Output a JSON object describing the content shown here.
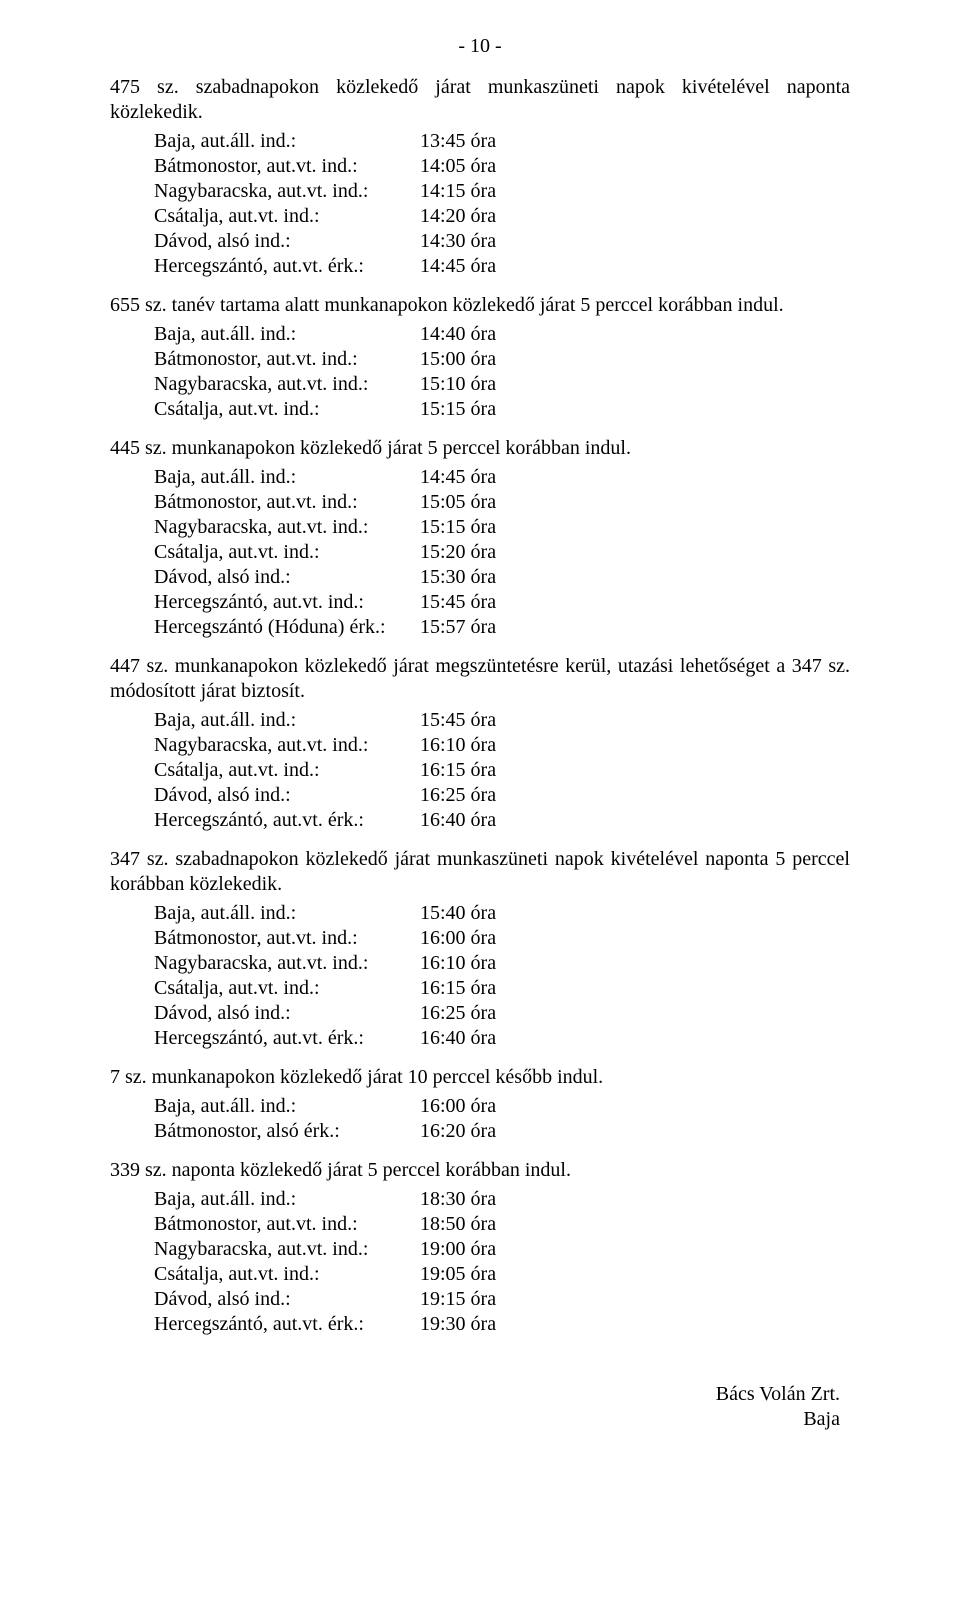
{
  "page_number": "- 10 -",
  "blocks": [
    {
      "intro": "475 sz. szabadnapokon közlekedő járat munkaszüneti napok kivételével naponta közlekedik.",
      "rows": [
        {
          "label": "Baja, aut.áll. ind.:",
          "value": "13:45 óra"
        },
        {
          "label": "Bátmonostor, aut.vt. ind.:",
          "value": "14:05 óra"
        },
        {
          "label": "Nagybaracska, aut.vt. ind.:",
          "value": "14:15 óra"
        },
        {
          "label": "Csátalja, aut.vt. ind.:",
          "value": "14:20 óra"
        },
        {
          "label": "Dávod, alsó ind.:",
          "value": "14:30 óra"
        },
        {
          "label": "Hercegszántó, aut.vt. érk.:",
          "value": "14:45 óra"
        }
      ]
    },
    {
      "intro": "655 sz. tanév tartama alatt munkanapokon közlekedő járat 5 perccel korábban indul.",
      "rows": [
        {
          "label": "Baja, aut.áll. ind.:",
          "value": "14:40 óra"
        },
        {
          "label": "Bátmonostor, aut.vt. ind.:",
          "value": "15:00 óra"
        },
        {
          "label": "Nagybaracska, aut.vt. ind.:",
          "value": "15:10 óra"
        },
        {
          "label": "Csátalja, aut.vt. ind.:",
          "value": "15:15 óra"
        }
      ]
    },
    {
      "intro": "445 sz. munkanapokon közlekedő járat 5 perccel korábban indul.",
      "rows": [
        {
          "label": "Baja, aut.áll. ind.:",
          "value": "14:45 óra"
        },
        {
          "label": "Bátmonostor, aut.vt. ind.:",
          "value": "15:05 óra"
        },
        {
          "label": "Nagybaracska, aut.vt. ind.:",
          "value": "15:15 óra"
        },
        {
          "label": "Csátalja, aut.vt. ind.:",
          "value": "15:20 óra"
        },
        {
          "label": "Dávod, alsó ind.:",
          "value": "15:30 óra"
        },
        {
          "label": "Hercegszántó, aut.vt. ind.:",
          "value": "15:45 óra"
        },
        {
          "label": "Hercegszántó (Hóduna) érk.:",
          "value": "15:57 óra"
        }
      ]
    },
    {
      "intro": "447 sz. munkanapokon közlekedő járat megszüntetésre kerül, utazási lehetőséget a 347 sz. módosított járat biztosít.",
      "rows": [
        {
          "label": "Baja, aut.áll. ind.:",
          "value": "15:45 óra"
        },
        {
          "label": "Nagybaracska, aut.vt. ind.:",
          "value": "16:10 óra"
        },
        {
          "label": "Csátalja, aut.vt. ind.:",
          "value": "16:15 óra"
        },
        {
          "label": "Dávod, alsó ind.:",
          "value": "16:25 óra"
        },
        {
          "label": "Hercegszántó, aut.vt. érk.:",
          "value": "16:40 óra"
        }
      ]
    },
    {
      "intro": "347 sz. szabadnapokon közlekedő járat munkaszüneti napok kivételével naponta 5 perccel korábban közlekedik.",
      "rows": [
        {
          "label": "Baja, aut.áll. ind.:",
          "value": "15:40 óra"
        },
        {
          "label": "Bátmonostor, aut.vt. ind.:",
          "value": "16:00 óra"
        },
        {
          "label": "Nagybaracska, aut.vt. ind.:",
          "value": "16:10 óra"
        },
        {
          "label": "Csátalja, aut.vt. ind.:",
          "value": "16:15 óra"
        },
        {
          "label": "Dávod, alsó ind.:",
          "value": "16:25 óra"
        },
        {
          "label": "Hercegszántó, aut.vt. érk.:",
          "value": "16:40 óra"
        }
      ]
    },
    {
      "intro": "7 sz. munkanapokon közlekedő járat 10 perccel később indul.",
      "rows": [
        {
          "label": "Baja, aut.áll. ind.:",
          "value": "16:00 óra"
        },
        {
          "label": "Bátmonostor, alsó érk.:",
          "value": "16:20 óra"
        }
      ]
    },
    {
      "intro": "339 sz. naponta közlekedő járat 5 perccel korábban indul.",
      "rows": [
        {
          "label": "Baja, aut.áll. ind.:",
          "value": "18:30 óra"
        },
        {
          "label": "Bátmonostor, aut.vt. ind.:",
          "value": "18:50 óra"
        },
        {
          "label": "Nagybaracska, aut.vt. ind.:",
          "value": "19:00 óra"
        },
        {
          "label": "Csátalja, aut.vt. ind.:",
          "value": "19:05 óra"
        },
        {
          "label": "Dávod, alsó ind.:",
          "value": "19:15 óra"
        },
        {
          "label": "Hercegszántó, aut.vt. érk.:",
          "value": "19:30 óra"
        }
      ]
    }
  ],
  "footer": {
    "line1": "Bács Volán Zrt.",
    "line2": "Baja"
  }
}
